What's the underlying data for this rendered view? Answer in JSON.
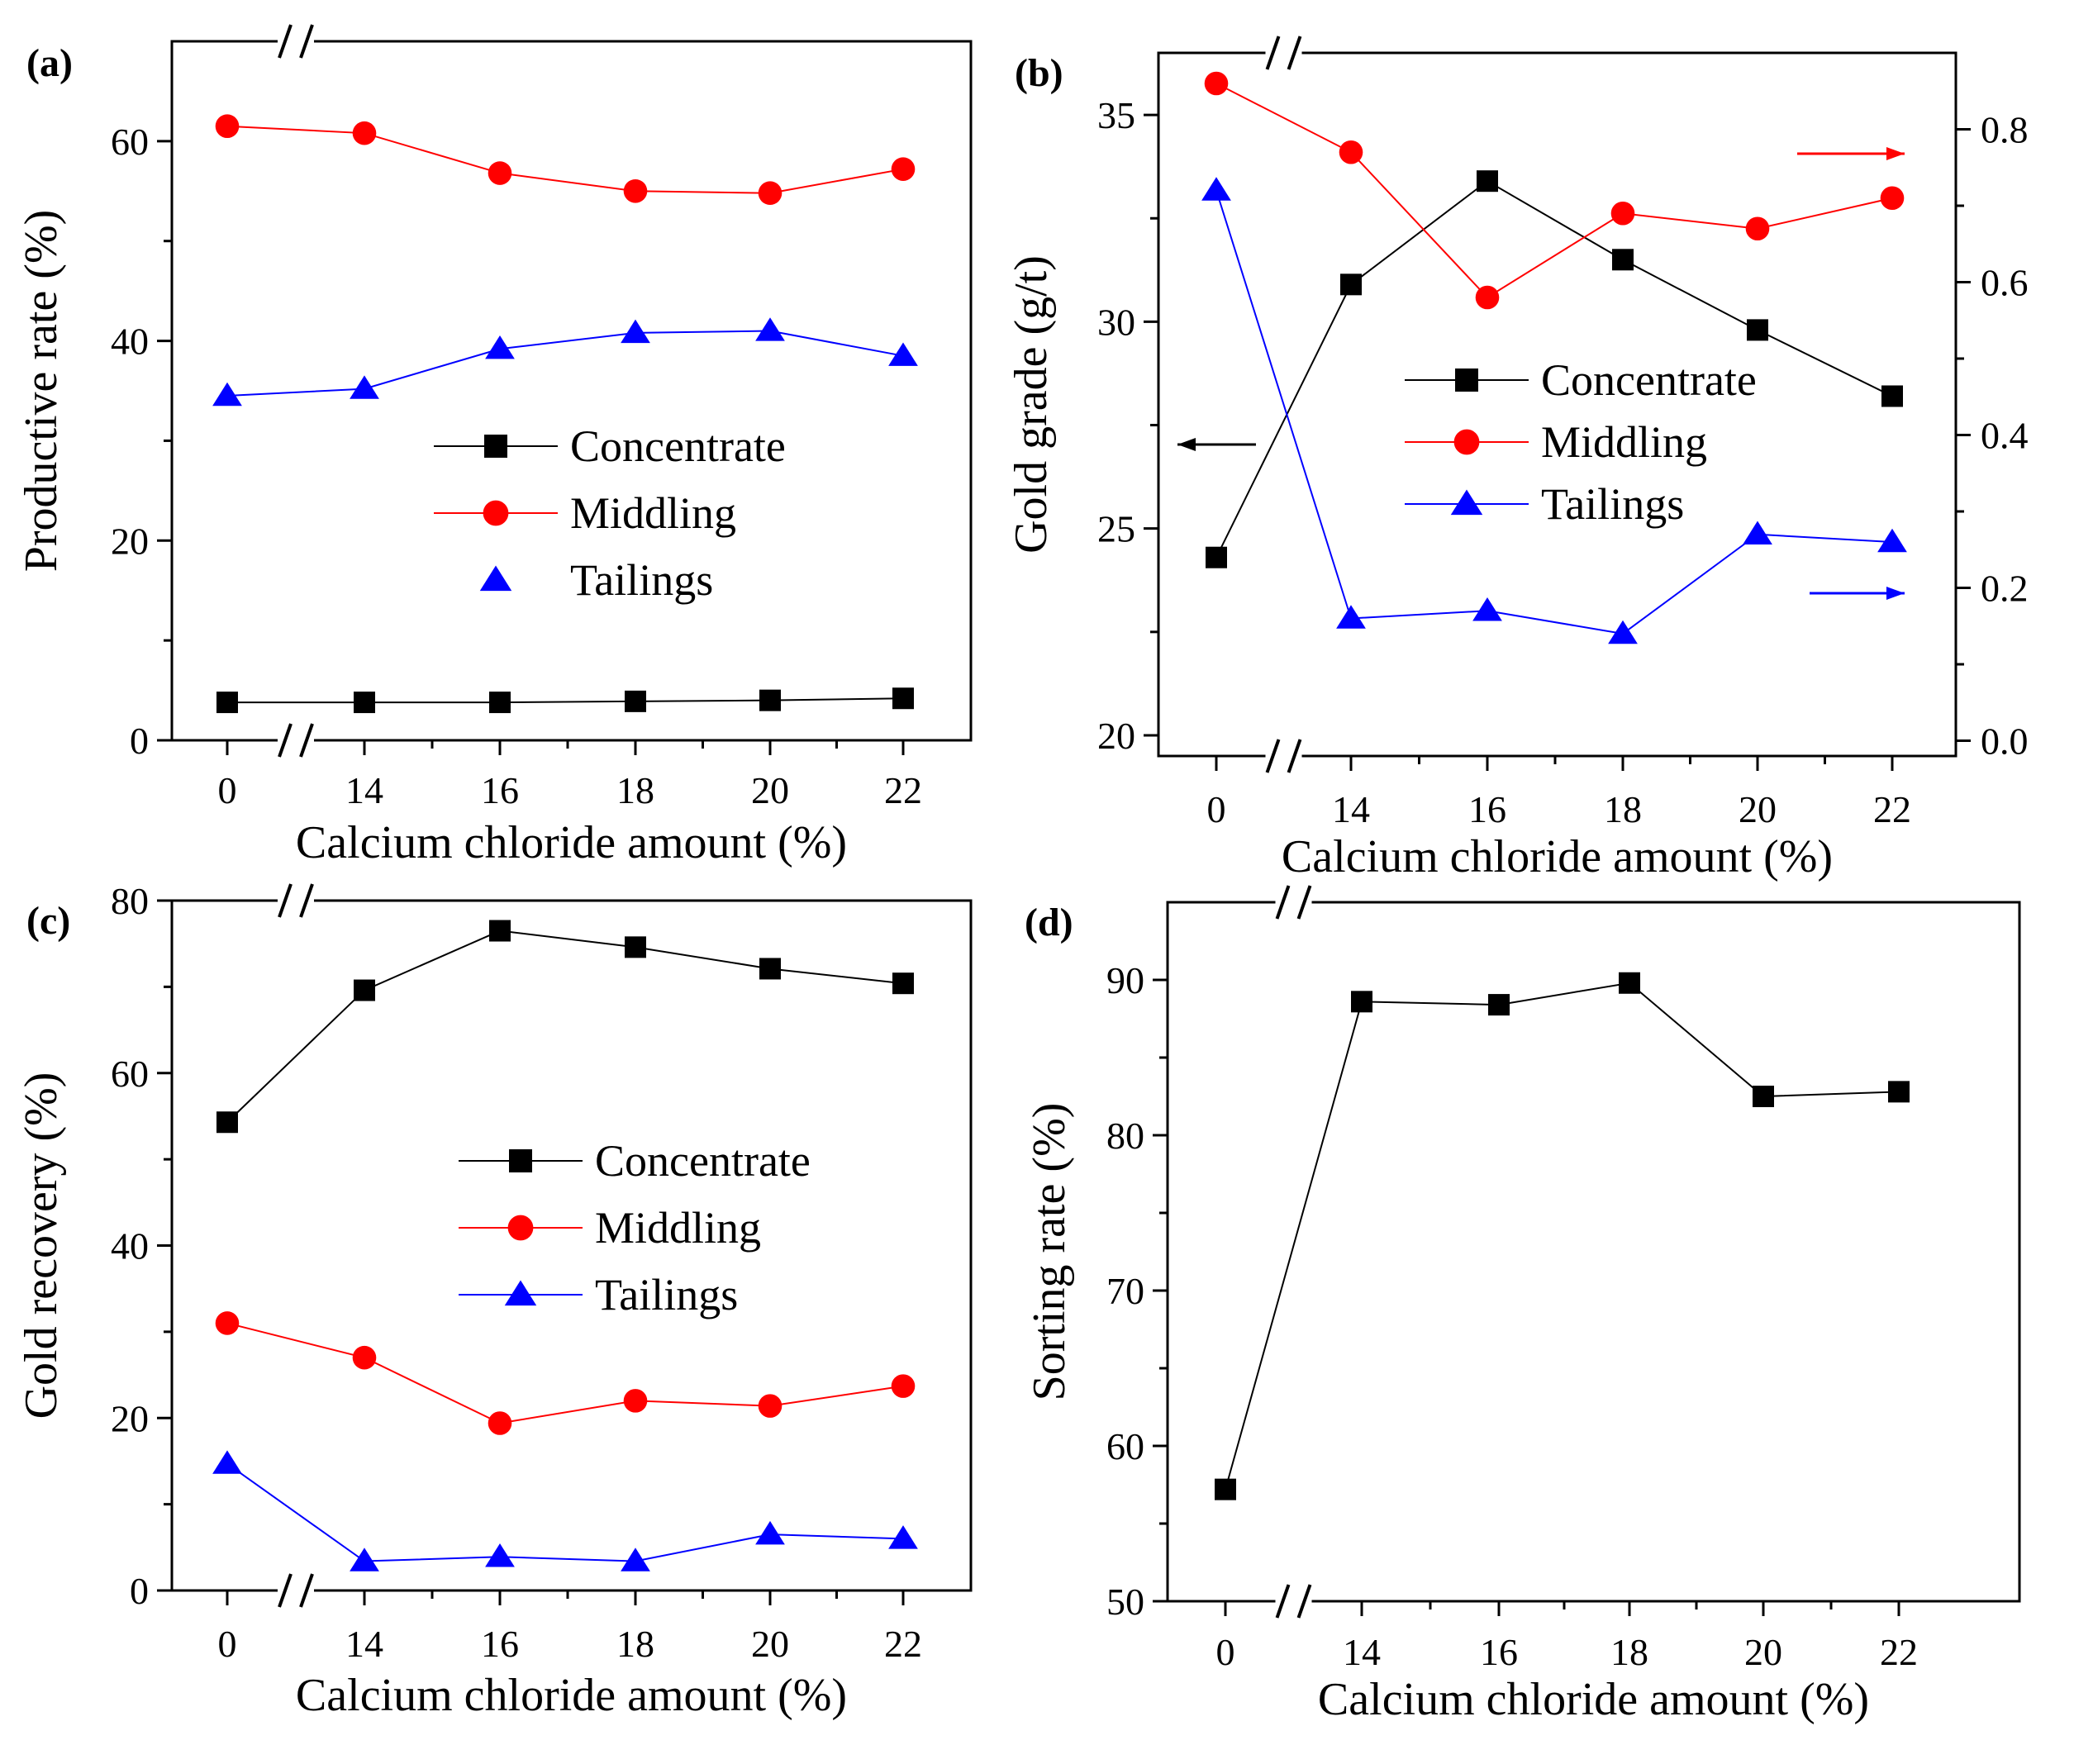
{
  "chart_data": [
    {
      "panel": "(a)",
      "type": "line",
      "categories": [
        "0",
        "14",
        "16",
        "18",
        "20",
        "22"
      ],
      "xlabel": "Calcium chloride amount (%)",
      "ylabel": "Productive rate (%)",
      "ylim": [
        0,
        70
      ],
      "yticks": [
        0,
        20,
        40,
        60
      ],
      "axis_break": true,
      "legend": "center-right",
      "series": [
        {
          "name": "Concentrate",
          "color": "#000000",
          "marker": "square",
          "values": [
            3.8,
            3.8,
            3.8,
            3.9,
            4.0,
            4.2
          ]
        },
        {
          "name": "Middling",
          "color": "#ff0000",
          "marker": "circle",
          "values": [
            61.5,
            60.8,
            56.8,
            55.0,
            54.8,
            57.2
          ]
        },
        {
          "name": "Tailings",
          "color": "#0000ff",
          "marker": "triangle",
          "values": [
            34.5,
            35.2,
            39.2,
            40.8,
            41.0,
            38.5
          ]
        }
      ]
    },
    {
      "panel": "(b)",
      "type": "line",
      "categories": [
        "0",
        "14",
        "16",
        "18",
        "20",
        "22"
      ],
      "xlabel": "Calcium chloride amount (%)",
      "ylabel": "Gold grade (g/t)",
      "ylim": [
        19.5,
        36.5
      ],
      "yticks": [
        20,
        25,
        30,
        35
      ],
      "y2lim": [
        -0.02,
        0.9
      ],
      "y2ticks": [
        "0.0",
        "0.2",
        "0.4",
        "0.6",
        "0.8"
      ],
      "axis_break": true,
      "legend": "center-right",
      "series": [
        {
          "name": "Concentrate",
          "axis": "left",
          "color": "#000000",
          "marker": "square",
          "values": [
            24.3,
            30.9,
            33.4,
            31.5,
            29.8,
            28.2
          ]
        },
        {
          "name": "Middling",
          "axis": "right",
          "color": "#ff0000",
          "marker": "circle",
          "values": [
            0.86,
            0.77,
            0.58,
            0.69,
            0.67,
            0.71
          ]
        },
        {
          "name": "Tailings",
          "axis": "right",
          "color": "#0000ff",
          "marker": "triangle",
          "values": [
            0.72,
            0.16,
            0.17,
            0.14,
            0.27,
            0.26
          ]
        }
      ]
    },
    {
      "panel": "(c)",
      "type": "line",
      "categories": [
        "0",
        "14",
        "16",
        "18",
        "20",
        "22"
      ],
      "xlabel": "Calcium chloride amount (%)",
      "ylabel": "Gold recovery (%)",
      "ylim": [
        0,
        80
      ],
      "yticks": [
        0,
        20,
        40,
        60,
        80
      ],
      "axis_break": true,
      "legend": "center-right",
      "series": [
        {
          "name": "Concentrate",
          "color": "#000000",
          "marker": "square",
          "values": [
            54.3,
            69.6,
            76.5,
            74.6,
            72.1,
            70.4
          ]
        },
        {
          "name": "Middling",
          "color": "#ff0000",
          "marker": "circle",
          "values": [
            31.0,
            27.0,
            19.4,
            22.0,
            21.4,
            23.7
          ]
        },
        {
          "name": "Tailings",
          "color": "#0000ff",
          "marker": "triangle",
          "values": [
            14.7,
            3.4,
            3.9,
            3.4,
            6.5,
            6.0
          ]
        }
      ]
    },
    {
      "panel": "(d)",
      "type": "line",
      "categories": [
        "0",
        "14",
        "16",
        "18",
        "20",
        "22"
      ],
      "xlabel": "Calcium chloride amount (%)",
      "ylabel": "Sorting rate (%)",
      "ylim": [
        50,
        95
      ],
      "yticks": [
        50,
        60,
        70,
        80,
        90
      ],
      "axis_break": true,
      "series": [
        {
          "name": "Sorting rate",
          "color": "#000000",
          "marker": "square",
          "values": [
            57.2,
            88.6,
            88.4,
            89.8,
            82.5,
            82.8
          ]
        }
      ]
    }
  ]
}
